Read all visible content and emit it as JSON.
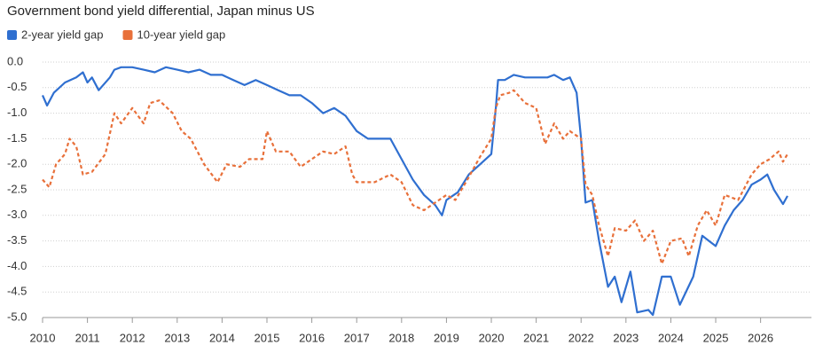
{
  "chart_data": {
    "type": "line",
    "title": "Government bond yield differential, Japan minus US",
    "series": [
      {
        "name": "2-year yield gap",
        "color": "#2f6fd0",
        "dash": false,
        "x": [
          2010.0,
          2010.1,
          2010.25,
          2010.5,
          2010.75,
          2010.9,
          2011.0,
          2011.1,
          2011.25,
          2011.5,
          2011.6,
          2011.75,
          2012.0,
          2012.25,
          2012.5,
          2012.75,
          2013.0,
          2013.25,
          2013.5,
          2013.75,
          2014.0,
          2014.25,
          2014.5,
          2014.75,
          2015.0,
          2015.25,
          2015.5,
          2015.75,
          2016.0,
          2016.25,
          2016.5,
          2016.75,
          2017.0,
          2017.25,
          2017.5,
          2017.75,
          2018.0,
          2018.25,
          2018.5,
          2018.75,
          2018.9,
          2019.0,
          2019.25,
          2019.5,
          2019.75,
          2020.0,
          2020.1,
          2020.15,
          2020.3,
          2020.5,
          2020.75,
          2021.0,
          2021.25,
          2021.4,
          2021.6,
          2021.75,
          2021.9,
          2022.0,
          2022.1,
          2022.25,
          2022.4,
          2022.6,
          2022.75,
          2022.9,
          2023.1,
          2023.25,
          2023.5,
          2023.6,
          2023.8,
          2024.0,
          2024.2,
          2024.5,
          2024.7,
          2024.85,
          2025.0,
          2025.2,
          2025.4,
          2025.6,
          2025.8,
          2026.0,
          2026.15,
          2026.3,
          2026.5,
          2026.6
        ],
        "values": [
          -0.65,
          -0.85,
          -0.6,
          -0.4,
          -0.3,
          -0.2,
          -0.4,
          -0.3,
          -0.55,
          -0.3,
          -0.15,
          -0.1,
          -0.1,
          -0.15,
          -0.2,
          -0.1,
          -0.15,
          -0.2,
          -0.15,
          -0.25,
          -0.25,
          -0.35,
          -0.45,
          -0.35,
          -0.45,
          -0.55,
          -0.65,
          -0.65,
          -0.8,
          -1.0,
          -0.9,
          -1.05,
          -1.35,
          -1.5,
          -1.5,
          -1.5,
          -1.9,
          -2.3,
          -2.6,
          -2.8,
          -3.0,
          -2.7,
          -2.55,
          -2.2,
          -2.0,
          -1.8,
          -0.9,
          -0.35,
          -0.35,
          -0.25,
          -0.3,
          -0.3,
          -0.3,
          -0.25,
          -0.35,
          -0.3,
          -0.6,
          -1.5,
          -2.75,
          -2.7,
          -3.5,
          -4.4,
          -4.2,
          -4.7,
          -4.1,
          -4.9,
          -4.85,
          -4.95,
          -4.2,
          -4.2,
          -4.75,
          -4.2,
          -3.4,
          -3.5,
          -3.6,
          -3.2,
          -2.9,
          -2.7,
          -2.4,
          -2.3,
          -2.2,
          -2.5,
          -2.78,
          -2.62
        ]
      },
      {
        "name": "10-year yield gap",
        "color": "#e8703a",
        "dash": true,
        "x": [
          2010.0,
          2010.15,
          2010.3,
          2010.5,
          2010.6,
          2010.75,
          2010.9,
          2011.1,
          2011.4,
          2011.6,
          2011.75,
          2012.0,
          2012.25,
          2012.4,
          2012.6,
          2012.9,
          2013.1,
          2013.3,
          2013.6,
          2013.9,
          2014.1,
          2014.4,
          2014.6,
          2014.9,
          2015.0,
          2015.2,
          2015.5,
          2015.75,
          2016.0,
          2016.25,
          2016.5,
          2016.75,
          2016.9,
          2017.0,
          2017.4,
          2017.75,
          2018.0,
          2018.25,
          2018.5,
          2018.75,
          2019.0,
          2019.2,
          2019.5,
          2019.75,
          2020.0,
          2020.1,
          2020.2,
          2020.4,
          2020.5,
          2020.75,
          2021.0,
          2021.2,
          2021.4,
          2021.6,
          2021.75,
          2022.0,
          2022.1,
          2022.25,
          2022.4,
          2022.6,
          2022.75,
          2023.0,
          2023.2,
          2023.4,
          2023.6,
          2023.8,
          2024.0,
          2024.25,
          2024.4,
          2024.6,
          2024.8,
          2025.0,
          2025.2,
          2025.5,
          2025.8,
          2026.0,
          2026.2,
          2026.4,
          2026.5,
          2026.6
        ],
        "values": [
          -2.3,
          -2.45,
          -2.0,
          -1.8,
          -1.5,
          -1.65,
          -2.2,
          -2.15,
          -1.8,
          -1.0,
          -1.2,
          -0.9,
          -1.2,
          -0.8,
          -0.75,
          -1.0,
          -1.35,
          -1.5,
          -2.0,
          -2.35,
          -2.0,
          -2.05,
          -1.9,
          -1.9,
          -1.35,
          -1.75,
          -1.75,
          -2.05,
          -1.9,
          -1.75,
          -1.8,
          -1.65,
          -2.2,
          -2.35,
          -2.35,
          -2.2,
          -2.35,
          -2.8,
          -2.9,
          -2.75,
          -2.6,
          -2.7,
          -2.25,
          -1.85,
          -1.5,
          -0.9,
          -0.65,
          -0.6,
          -0.55,
          -0.8,
          -0.9,
          -1.6,
          -1.2,
          -1.5,
          -1.35,
          -1.5,
          -2.4,
          -2.6,
          -3.2,
          -3.8,
          -3.25,
          -3.3,
          -3.1,
          -3.5,
          -3.3,
          -3.95,
          -3.5,
          -3.45,
          -3.8,
          -3.2,
          -2.9,
          -3.2,
          -2.6,
          -2.7,
          -2.2,
          -2.0,
          -1.9,
          -1.75,
          -1.95,
          -1.8
        ]
      }
    ],
    "xlim": [
      2010,
      2026.6
    ],
    "xticks": [
      2010,
      2011,
      2012,
      2013,
      2014,
      2015,
      2016,
      2017,
      2018,
      2019,
      2020,
      2021,
      2022,
      2023,
      2024,
      2025,
      2026
    ],
    "ylim": [
      -5.0,
      0.0
    ],
    "yticks": [
      {
        "value": 0,
        "label": "0.0"
      },
      -0.5,
      {
        "value": -1,
        "label": "-1.0"
      },
      -1.5,
      {
        "value": -2,
        "label": "-2.0"
      },
      -2.5,
      {
        "value": -3,
        "label": "-3.0"
      },
      -3.5,
      {
        "value": -4,
        "label": "-4.0"
      },
      -4.5,
      {
        "value": -5,
        "label": "-5.0"
      }
    ],
    "grid": true
  }
}
